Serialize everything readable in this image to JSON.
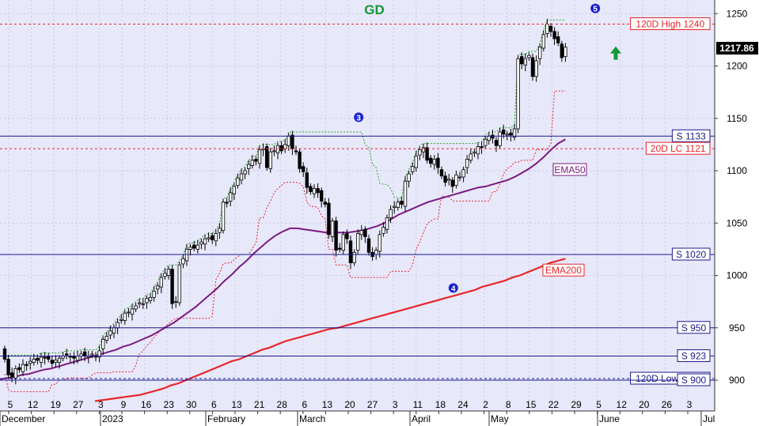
{
  "chart_data": {
    "type": "candlestick",
    "title": "GD",
    "ylim": [
      885,
      1262
    ],
    "yticks": [
      900,
      950,
      1000,
      1050,
      1100,
      1150,
      1200,
      1250
    ],
    "grid": true,
    "x_date_ticks": [
      "5",
      "12",
      "19",
      "27",
      "3",
      "9",
      "16",
      "23",
      "30",
      "6",
      "13",
      "21",
      "28",
      "6",
      "13",
      "20",
      "27",
      "3",
      "11",
      "18",
      "24",
      "2",
      "8",
      "15",
      "22",
      "29",
      "5",
      "12",
      "20",
      "26",
      "3"
    ],
    "x_month_labels": [
      "December",
      "2023",
      "February",
      "March",
      "April",
      "May",
      "June",
      "Jul"
    ],
    "last_price": "1217.86",
    "levels": [
      {
        "label": "120D High 1240",
        "value": 1240,
        "style": "dashed",
        "color": "#e8262a"
      },
      {
        "label": "S 1133",
        "value": 1133,
        "style": "solid",
        "color": "#1a1a8c"
      },
      {
        "label": "20D LC 1121",
        "value": 1121,
        "style": "dashed",
        "color": "#e8262a"
      },
      {
        "label": "S 1020",
        "value": 1020,
        "style": "solid",
        "color": "#1a1a8c"
      },
      {
        "label": "S 950",
        "value": 950,
        "style": "solid",
        "color": "#1a1a8c"
      },
      {
        "label": "S 923",
        "value": 923,
        "style": "solid",
        "color": "#1a1a8c"
      },
      {
        "label": "120D Low 901.5",
        "value": 901.5,
        "style": "dashed",
        "color": "#1a1a8c"
      },
      {
        "label": "S 900",
        "value": 900,
        "style": "solid",
        "color": "#1a1a8c"
      }
    ],
    "series_labels": {
      "ema50": "EMA50",
      "ema200": "EMA200"
    },
    "markers": [
      {
        "label": "3",
        "bar": 97,
        "value": 1151
      },
      {
        "label": "4",
        "bar": 123,
        "value": 988
      },
      {
        "label": "5",
        "bar": 162,
        "value": 1255
      }
    ],
    "up_arrow_value": 1212,
    "closes": [
      920,
      905,
      903,
      911,
      910,
      915,
      914,
      918,
      920,
      919,
      922,
      921,
      920,
      916,
      919,
      921,
      923,
      924,
      922,
      921,
      923,
      925,
      923,
      923,
      925,
      922,
      928,
      939,
      942,
      947,
      950,
      955,
      958,
      964,
      965,
      968,
      971,
      974,
      973,
      978,
      979,
      985,
      990,
      998,
      1002,
      1006,
      973,
      975,
      1010,
      1016,
      1025,
      1027,
      1026,
      1029,
      1032,
      1035,
      1036,
      1034,
      1040,
      1045,
      1070,
      1069,
      1079,
      1085,
      1093,
      1097,
      1100,
      1106,
      1110,
      1109,
      1120,
      1121,
      1103,
      1118,
      1119,
      1124,
      1119,
      1125,
      1133,
      1121,
      1118,
      1102,
      1099,
      1084,
      1080,
      1083,
      1079,
      1071,
      1068,
      1039,
      1052,
      1024,
      1025,
      1039,
      1035,
      1012,
      1022,
      1040,
      1043,
      1037,
      1022,
      1018,
      1024,
      1039,
      1046,
      1055,
      1063,
      1066,
      1070,
      1068,
      1090,
      1097,
      1104,
      1114,
      1120,
      1122,
      1110,
      1107,
      1111,
      1103,
      1095,
      1089,
      1092,
      1085,
      1096,
      1094,
      1101,
      1111,
      1116,
      1118,
      1123,
      1122,
      1130,
      1133,
      1131,
      1124,
      1137,
      1135,
      1135,
      1134,
      1140,
      1207,
      1202,
      1207,
      1210,
      1190,
      1205,
      1218,
      1230,
      1240,
      1233,
      1226,
      1222,
      1208,
      1218
    ],
    "ema50": [
      901,
      902,
      903,
      905,
      906,
      908,
      910,
      911,
      913,
      915,
      917,
      919,
      921,
      923,
      925,
      927,
      929,
      932,
      934,
      937,
      940,
      943,
      947,
      951,
      955,
      960,
      965,
      970,
      976,
      982,
      988,
      995,
      1001,
      1008,
      1014,
      1021,
      1027,
      1033,
      1038,
      1042,
      1045,
      1045,
      1044,
      1043,
      1042,
      1041,
      1041,
      1041,
      1041,
      1042,
      1043,
      1045,
      1047,
      1050,
      1054,
      1058,
      1061,
      1064,
      1067,
      1070,
      1072,
      1074,
      1076,
      1078,
      1080,
      1082,
      1084,
      1085,
      1087,
      1089,
      1091,
      1094,
      1098,
      1102,
      1107,
      1113,
      1120,
      1126,
      1130
    ],
    "ema200": [
      880,
      881,
      882,
      883,
      884,
      885,
      886,
      888,
      890,
      892,
      895,
      897,
      900,
      903,
      906,
      909,
      912,
      915,
      918,
      920,
      923,
      926,
      929,
      931,
      934,
      937,
      939,
      941,
      943,
      945,
      947,
      949,
      950,
      952,
      954,
      956,
      958,
      960,
      962,
      964,
      966,
      968,
      970,
      972,
      974,
      976,
      978,
      980,
      982,
      984,
      986,
      989,
      991,
      993,
      995,
      998,
      1000,
      1003,
      1006,
      1009,
      1012,
      1014,
      1016
    ]
  }
}
